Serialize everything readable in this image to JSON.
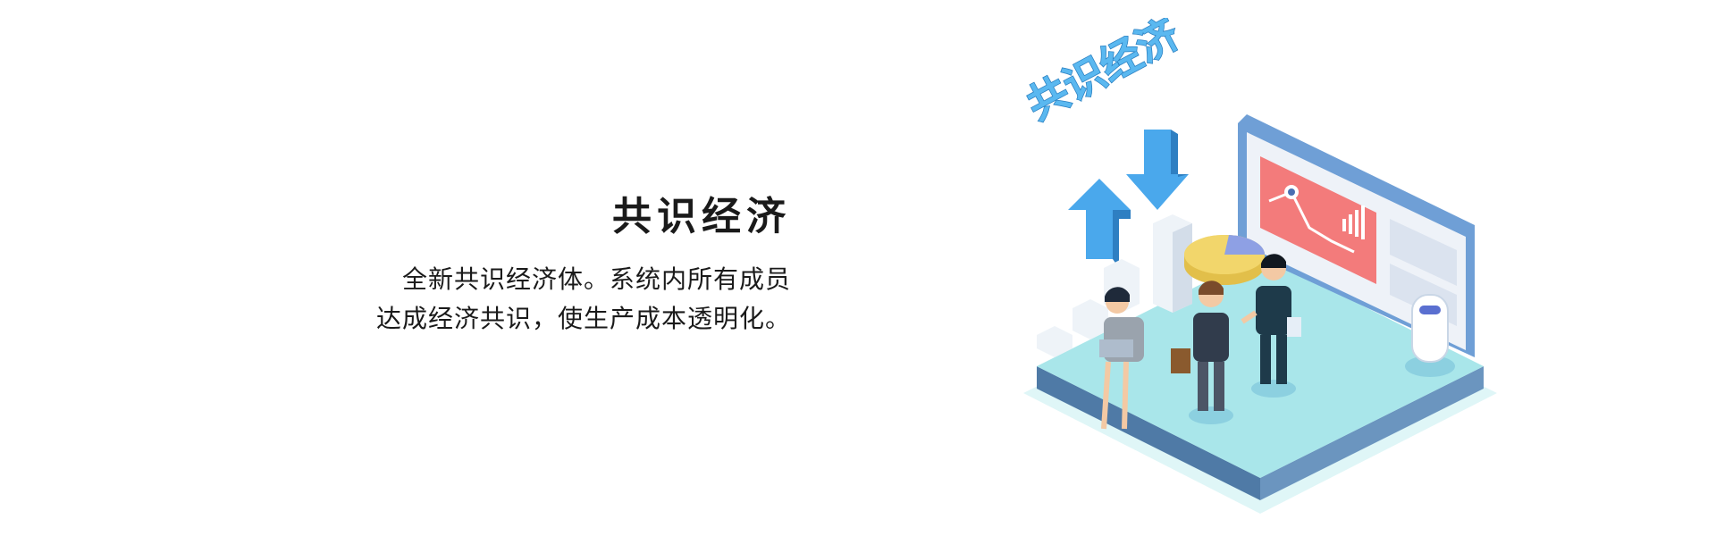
{
  "section": {
    "title": "共识经济",
    "description_lines": [
      "全新共识经济体。系统内所有成员",
      "达成经济共识，使生产成本透明化。"
    ]
  },
  "illustration": {
    "caption": "共识经济",
    "icon": "consensus-economy-isometric-illustration",
    "colors": {
      "platform_top": "#a9e6ea",
      "platform_side": "#5b87b2",
      "arrow": "#4aa8ec",
      "screen_frame": "#6f9fd6",
      "chart_panel": "#f37b7b",
      "pie_yellow": "#f2d66b",
      "pie_blue": "#8ea0e4"
    }
  }
}
